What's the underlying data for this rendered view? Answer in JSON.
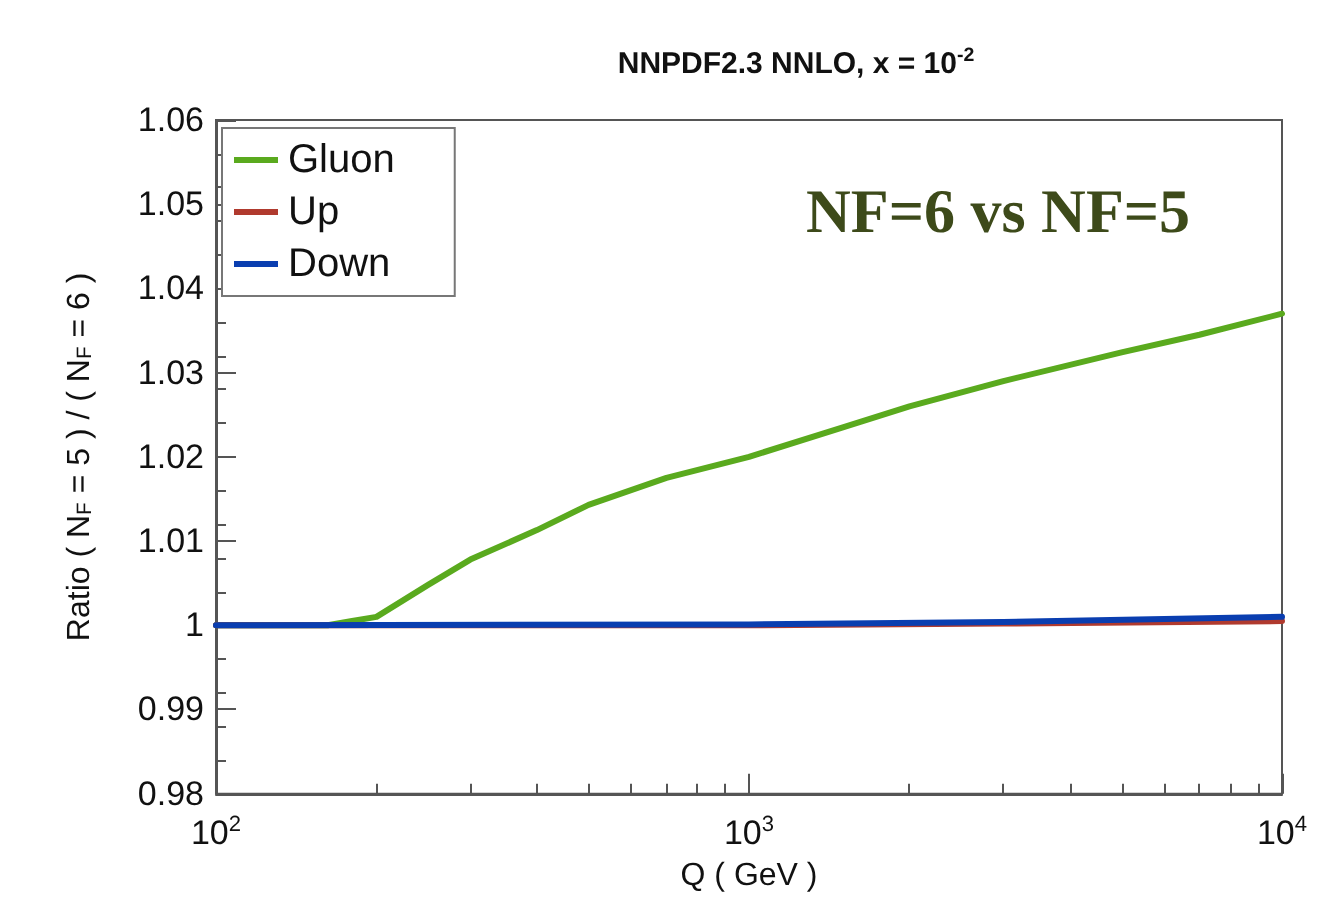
{
  "chart_data": {
    "type": "line",
    "title": "NNPDF2.3 NNLO, x = 10$^{-2}$",
    "xlabel": "Q ( GeV )",
    "ylabel": "Ratio ( N$_{F}$ = 5 ) / ( N$_{F}$ = 6 )",
    "annotations": [
      "NF=6 vs NF=5"
    ],
    "log": "x",
    "xlim": [
      100,
      10000
    ],
    "xticks": [
      {
        "value": 100,
        "label": "10$^{2}$"
      },
      {
        "value": 1000,
        "label": "10$^{3}$"
      },
      {
        "value": 10000,
        "label": "10$^{4}$"
      }
    ],
    "ylim": [
      0.98,
      1.06
    ],
    "yticks": [
      0.98,
      0.99,
      1,
      1.01,
      1.02,
      1.03,
      1.04,
      1.05,
      1.06
    ],
    "grid": false,
    "legend": "top left",
    "marker": "none",
    "line_style": "solid",
    "series": [
      {
        "name": "Gluon",
        "color": "#5aaa1e",
        "x": [
          100,
          162,
          180,
          200,
          250,
          300,
          400,
          500,
          700,
          1000,
          1500,
          2000,
          3000,
          5000,
          7000,
          10000
        ],
        "values": [
          1,
          1,
          1.0005,
          1.001,
          1.0048,
          1.0078,
          1.0113,
          1.0143,
          1.0175,
          1.02,
          1.0235,
          1.026,
          1.029,
          1.0324,
          1.0345,
          1.037
        ]
      },
      {
        "name": "Up",
        "color": "#b03a2e",
        "x": [
          100,
          1000,
          3000,
          10000
        ],
        "values": [
          1,
          1,
          1.0002,
          1.0005
        ]
      },
      {
        "name": "Down",
        "color": "#0a3eb0",
        "x": [
          100,
          1000,
          3000,
          10000
        ],
        "values": [
          1,
          1.0001,
          1.0004,
          1.001
        ]
      }
    ]
  }
}
